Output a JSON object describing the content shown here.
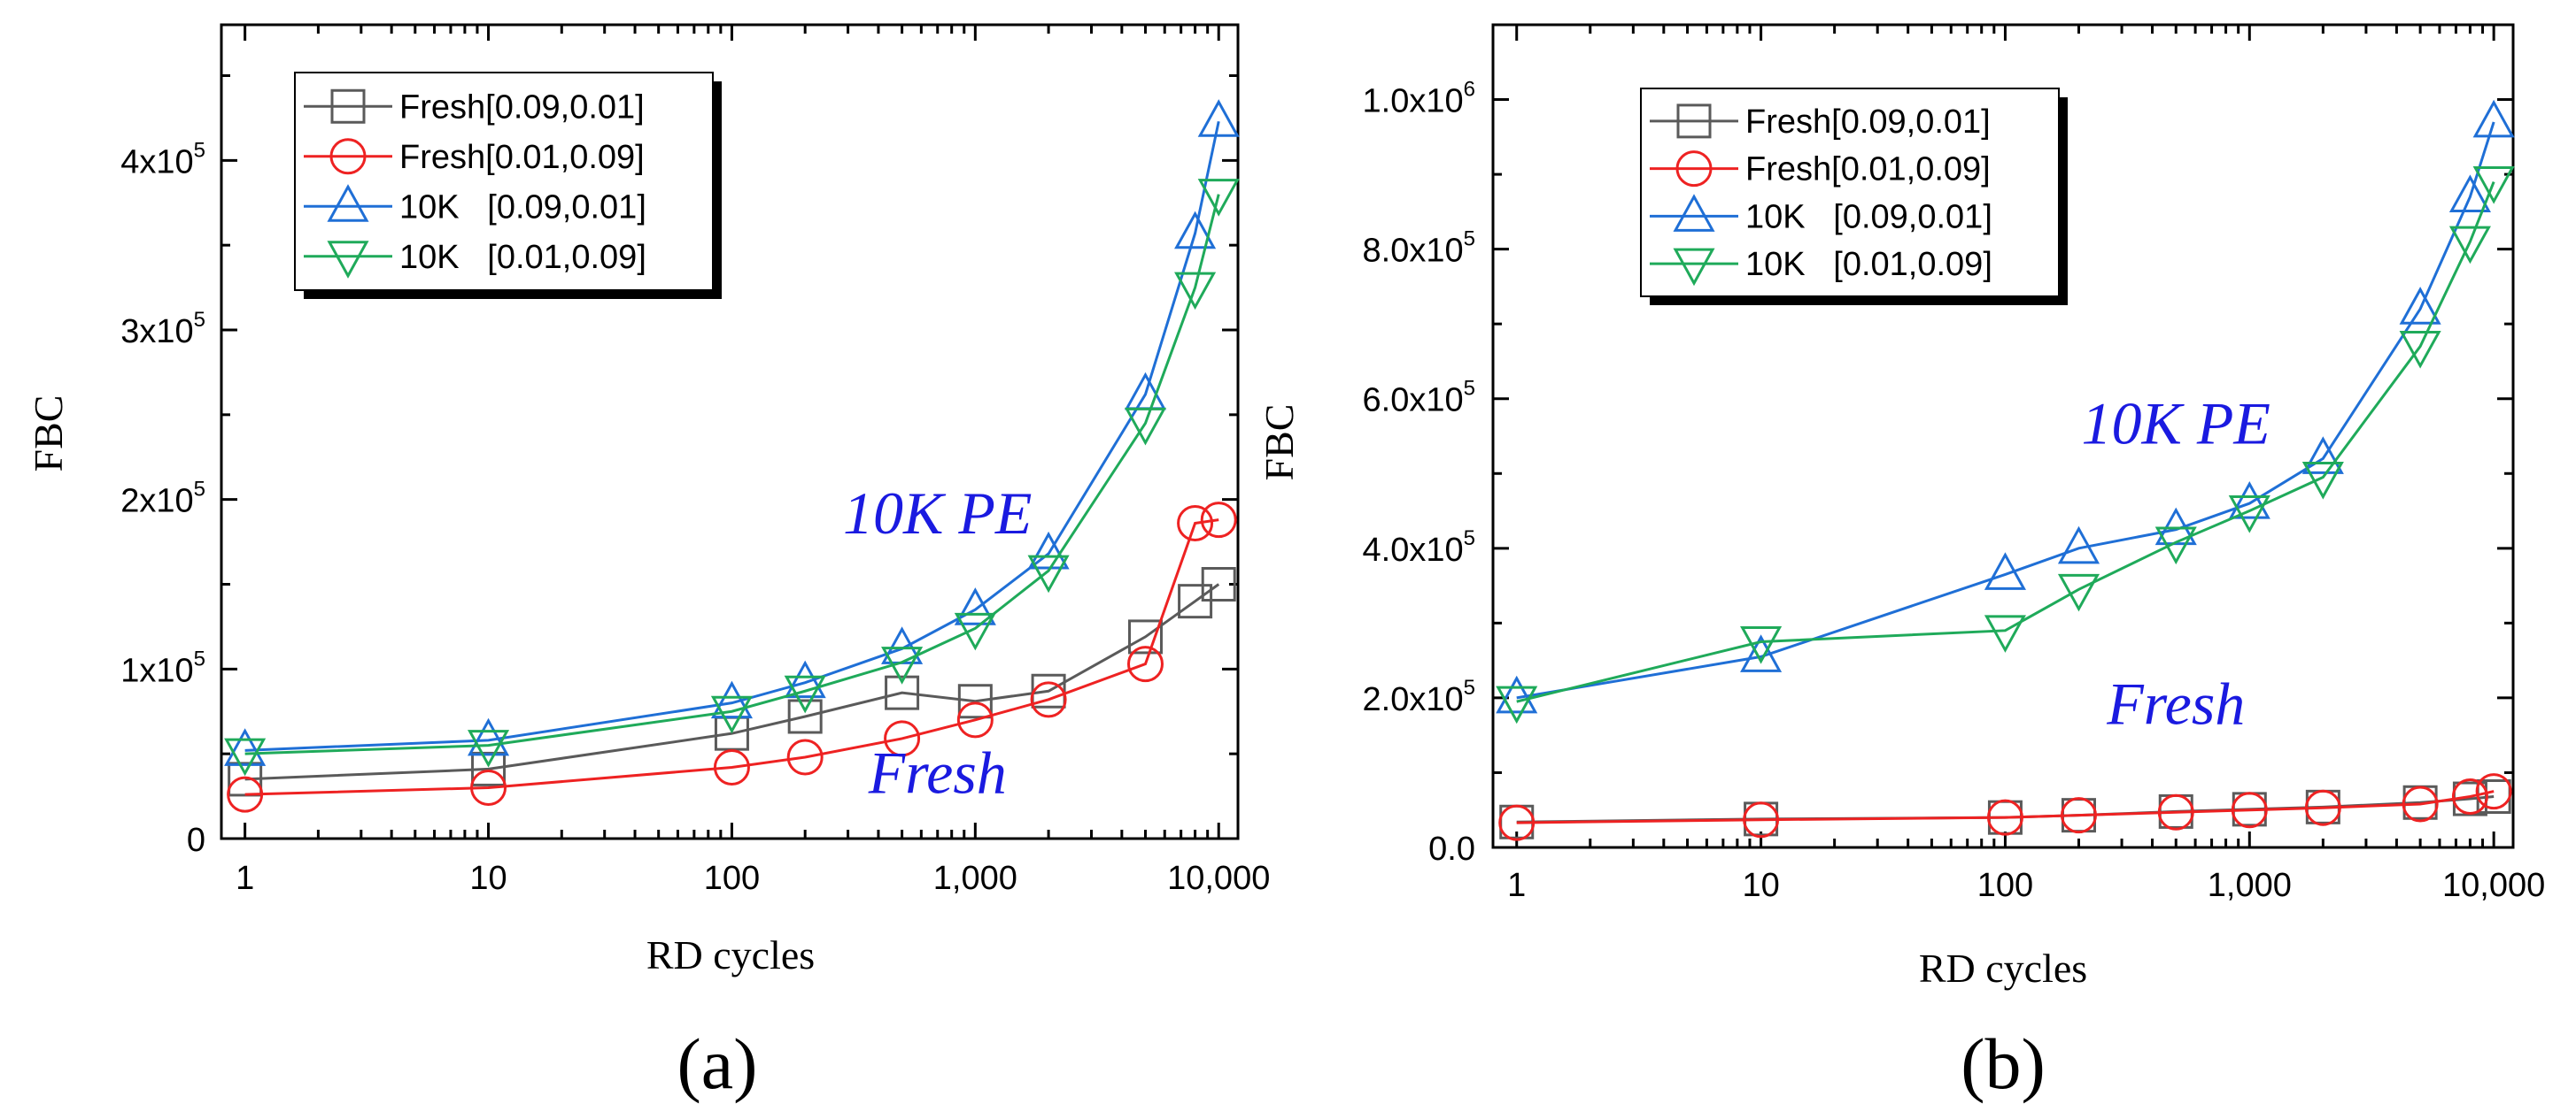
{
  "chart_data": [
    {
      "type": "line",
      "panel_label": "(a)",
      "xlabel": "RD cycles",
      "ylabel": "FBC",
      "xscale": "log",
      "xlim": [
        0.8,
        12000
      ],
      "ylim": [
        0,
        480000
      ],
      "xticks": [
        1,
        10,
        100,
        1000,
        10000
      ],
      "xtick_labels": [
        "1",
        "10",
        "100",
        "1,000",
        "10,000"
      ],
      "yticks": [
        0,
        100000,
        200000,
        300000,
        400000
      ],
      "ytick_labels": [
        {
          "base": "0",
          "exp": ""
        },
        {
          "base": "1x10",
          "exp": "5"
        },
        {
          "base": "2x10",
          "exp": "5"
        },
        {
          "base": "3x10",
          "exp": "5"
        },
        {
          "base": "4x10",
          "exp": "5"
        }
      ],
      "legend_position": "top-left",
      "annotations": [
        {
          "text": "10K PE",
          "x": 700,
          "y": 180000
        },
        {
          "text": "Fresh",
          "x": 700,
          "y": 27000
        }
      ],
      "x": [
        1,
        10,
        100,
        200,
        500,
        1000,
        2000,
        5000,
        8000,
        10000
      ],
      "series": [
        {
          "name": "Fresh[0.09,0.01]",
          "color": "#5a5a5a",
          "marker": "square",
          "values": [
            35000,
            41000,
            62000,
            72000,
            86000,
            81000,
            87000,
            119000,
            140000,
            150000
          ]
        },
        {
          "name": "Fresh[0.01,0.09]",
          "color": "#ee2222",
          "marker": "circle",
          "values": [
            26000,
            30000,
            42000,
            48000,
            59000,
            70000,
            82000,
            103000,
            186000,
            188000
          ]
        },
        {
          "name": "10K   [0.09,0.01]",
          "color": "#1f6fd6",
          "marker": "triangle-up",
          "values": [
            52000,
            58000,
            80000,
            92000,
            112000,
            135000,
            168000,
            262000,
            357000,
            423000
          ]
        },
        {
          "name": "10K   [0.01,0.09]",
          "color": "#1faa5a",
          "marker": "triangle-down",
          "values": [
            50000,
            55000,
            75000,
            87000,
            104000,
            124000,
            158000,
            245000,
            325000,
            380000
          ]
        }
      ]
    },
    {
      "type": "line",
      "panel_label": "(b)",
      "xlabel": "RD cycles",
      "ylabel": "FBC",
      "xscale": "log",
      "xlim": [
        0.8,
        12000
      ],
      "ylim": [
        0,
        1100000
      ],
      "xticks": [
        1,
        10,
        100,
        1000,
        10000
      ],
      "xtick_labels": [
        "1",
        "10",
        "100",
        "1,000",
        "10,000"
      ],
      "yticks": [
        0,
        200000,
        400000,
        600000,
        800000,
        1000000
      ],
      "ytick_labels": [
        {
          "base": "0.0",
          "exp": ""
        },
        {
          "base": "2.0x10",
          "exp": "5"
        },
        {
          "base": "4.0x10",
          "exp": "5"
        },
        {
          "base": "6.0x10",
          "exp": "5"
        },
        {
          "base": "8.0x10",
          "exp": "5"
        },
        {
          "base": "1.0x10",
          "exp": "6"
        }
      ],
      "legend_position": "top-left",
      "annotations": [
        {
          "text": "10K PE",
          "x": 500,
          "y": 540000
        },
        {
          "text": "Fresh",
          "x": 500,
          "y": 165000
        }
      ],
      "x": [
        1,
        10,
        100,
        200,
        500,
        1000,
        2000,
        5000,
        8000,
        10000
      ],
      "series": [
        {
          "name": "Fresh[0.09,0.01]",
          "color": "#5a5a5a",
          "marker": "square",
          "values": [
            34000,
            38000,
            40000,
            43000,
            48000,
            51000,
            54000,
            60000,
            65000,
            68000
          ]
        },
        {
          "name": "Fresh[0.01,0.09]",
          "color": "#ee2222",
          "marker": "circle",
          "values": [
            33000,
            37000,
            40000,
            43000,
            47000,
            50000,
            53000,
            58000,
            68000,
            75000
          ]
        },
        {
          "name": "10K   [0.09,0.01]",
          "color": "#1f6fd6",
          "marker": "triangle-up",
          "values": [
            200000,
            255000,
            365000,
            400000,
            425000,
            460000,
            520000,
            720000,
            870000,
            970000
          ]
        },
        {
          "name": "10K   [0.01,0.09]",
          "color": "#1faa5a",
          "marker": "triangle-down",
          "values": [
            195000,
            275000,
            290000,
            345000,
            408000,
            450000,
            495000,
            670000,
            810000,
            890000
          ]
        }
      ]
    }
  ]
}
